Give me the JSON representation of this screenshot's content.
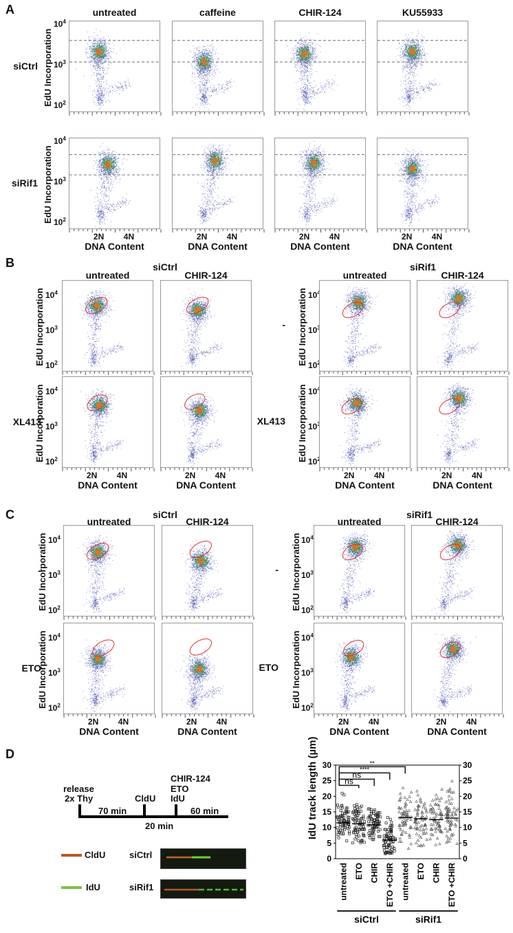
{
  "panels": {
    "A": {
      "letter": "A",
      "columns": [
        "untreated",
        "caffeine",
        "CHIR-124",
        "KU55933"
      ],
      "rows": [
        "siCtrl",
        "siRif1"
      ],
      "ylabel": "EdU Incorporation",
      "xlabel": "DNA Content",
      "yticks": [
        "2",
        "3",
        "4"
      ],
      "ybase": "10",
      "xticks": [
        "2N",
        "4N"
      ],
      "gate_lines": "dashed horizontal gates",
      "clusters": [
        [
          [
            2.3,
            3.35
          ],
          [
            2.35,
            3.1
          ],
          [
            2.3,
            3.3
          ],
          [
            2.45,
            3.35
          ]
        ],
        [
          [
            2.55,
            3.45
          ],
          [
            2.65,
            3.55
          ],
          [
            2.55,
            3.5
          ],
          [
            2.45,
            3.35
          ]
        ]
      ]
    },
    "B": {
      "letter": "B",
      "groups": [
        "siCtrl",
        "siRif1"
      ],
      "columns": [
        "untreated",
        "CHIR-124"
      ],
      "rows": [
        "-",
        "XL413"
      ],
      "ylabel": "EdU Incorporation",
      "xlabel": "DNA Content",
      "yticks": [
        "2",
        "3",
        "4"
      ],
      "ybase": "10",
      "xticks": [
        "2N",
        "4N"
      ]
    },
    "C": {
      "letter": "C",
      "groups": [
        "siCtrl",
        "siRif1"
      ],
      "columns": [
        "untreated",
        "CHIR-124"
      ],
      "rows": [
        "-",
        "ETO"
      ],
      "ylabel": "EdU Incorporation",
      "xlabel": "DNA Content",
      "yticks": [
        "2",
        "3",
        "4"
      ],
      "ybase": "10",
      "xticks": [
        "2N",
        "4N"
      ]
    },
    "D": {
      "letter": "D",
      "timeline": {
        "labels_top": [
          "release",
          "2x Thy",
          "CldU",
          "CHIR-124",
          "ETO",
          "IdU"
        ],
        "intervals": [
          "70 min",
          "20 min",
          "60 min"
        ]
      },
      "legend": [
        {
          "label": "CldU",
          "color": "#b5582a"
        },
        {
          "label": "IdU",
          "color": "#7cc242"
        }
      ],
      "fibers": [
        "siCtrl",
        "siRif1"
      ]
    }
  },
  "chart_data": {
    "type": "scatter",
    "title": "",
    "ylabel": "IdU track length (µm)",
    "ylim": [
      0,
      30
    ],
    "yticks": [
      0,
      5,
      10,
      15,
      20,
      25,
      30
    ],
    "categories": [
      "untreated",
      "ETO",
      "CHIR",
      "ETO +CHIR",
      "untreated",
      "ETO",
      "CHIR",
      "ETO +CHIR"
    ],
    "groups": [
      {
        "name": "siCtrl",
        "categories": [
          0,
          1,
          2,
          3
        ],
        "marker": "square"
      },
      {
        "name": "siRif1",
        "categories": [
          4,
          5,
          6,
          7
        ],
        "marker": "triangle"
      }
    ],
    "medians": [
      11.5,
      11.2,
      10.8,
      6.0,
      13.2,
      12.8,
      12.5,
      13.0
    ],
    "ranges": [
      [
        3.2,
        22.6
      ],
      [
        5,
        20
      ],
      [
        6,
        19
      ],
      [
        1.5,
        14.8
      ],
      [
        3,
        27.5
      ],
      [
        4,
        27
      ],
      [
        3.5,
        26
      ],
      [
        2.2,
        25
      ]
    ],
    "significance": [
      {
        "from": 0,
        "to": 1,
        "label": "ns"
      },
      {
        "from": 0,
        "to": 2,
        "label": "ns"
      },
      {
        "from": 0,
        "to": 3,
        "label": "****"
      },
      {
        "from": 0,
        "to": 4,
        "label": "**"
      }
    ]
  }
}
